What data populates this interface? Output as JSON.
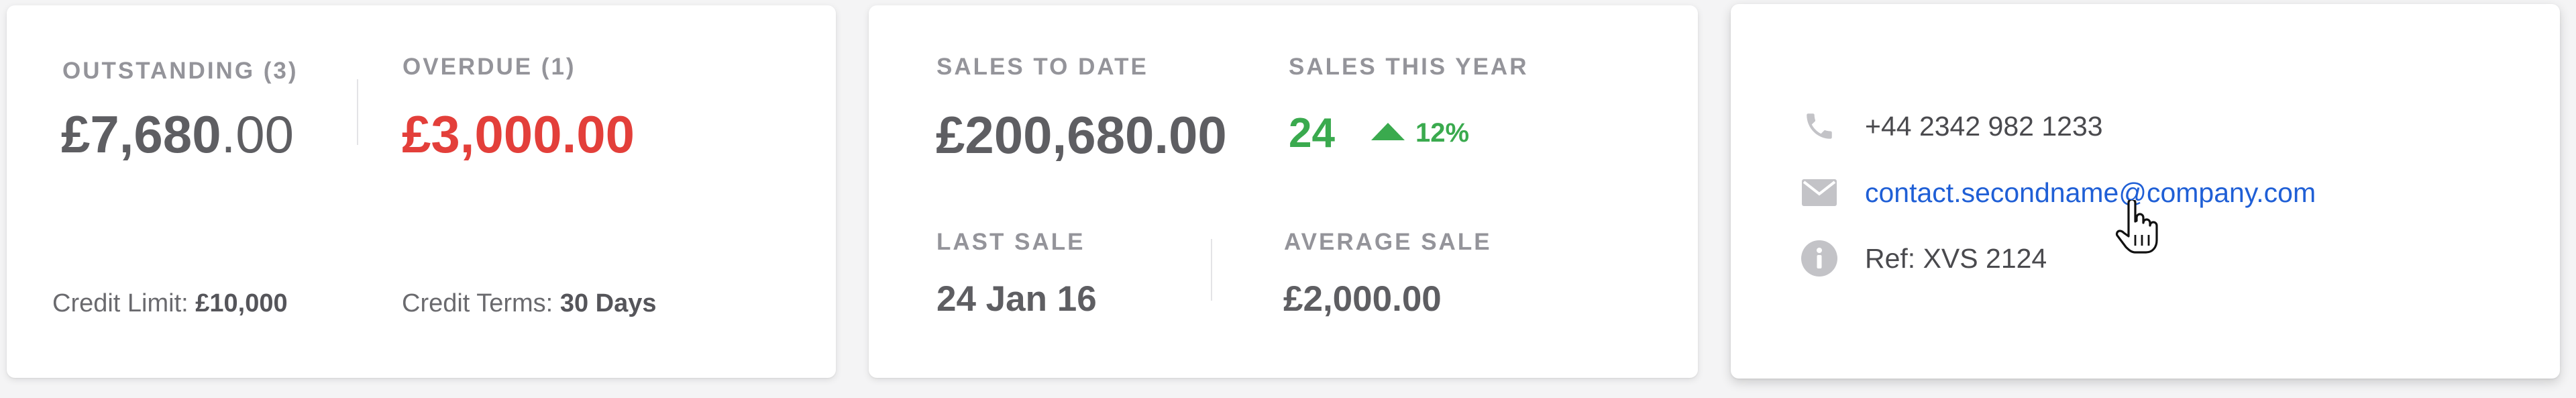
{
  "account_summary": {
    "outstanding": {
      "label": "OUTSTANDING (3)",
      "amount_main": "£7,680",
      "amount_decimals": ".00"
    },
    "overdue": {
      "label": "OVERDUE (1)",
      "amount": "£3,000.00"
    },
    "credit_limit": {
      "label": "Credit Limit:",
      "value": "£10,000"
    },
    "credit_terms": {
      "label": "Credit Terms:",
      "value": "30 Days"
    }
  },
  "sales_summary": {
    "sales_to_date": {
      "label": "SALES TO DATE",
      "value": "£200,680.00"
    },
    "sales_this_year": {
      "label": "SALES THIS YEAR",
      "value": "24",
      "trend_icon": "triangle-up-icon",
      "trend_value": "12%"
    },
    "last_sale": {
      "label": "LAST SALE",
      "value": "24 Jan 16"
    },
    "average_sale": {
      "label": "AVERAGE SALE",
      "value": "£2,000.00"
    }
  },
  "contact": {
    "phone": {
      "icon": "phone-icon",
      "value": "+44 2342 982 1233"
    },
    "email": {
      "icon": "envelope-icon",
      "value": "contact.secondname@company.com"
    },
    "reference": {
      "icon": "info-icon",
      "value": "Ref: XVS 2124"
    }
  },
  "colors": {
    "overdue_red": "#e33f3a",
    "positive_green": "#3aaa4e",
    "link_blue": "#1f5fd6",
    "label_gray": "#94949a"
  }
}
